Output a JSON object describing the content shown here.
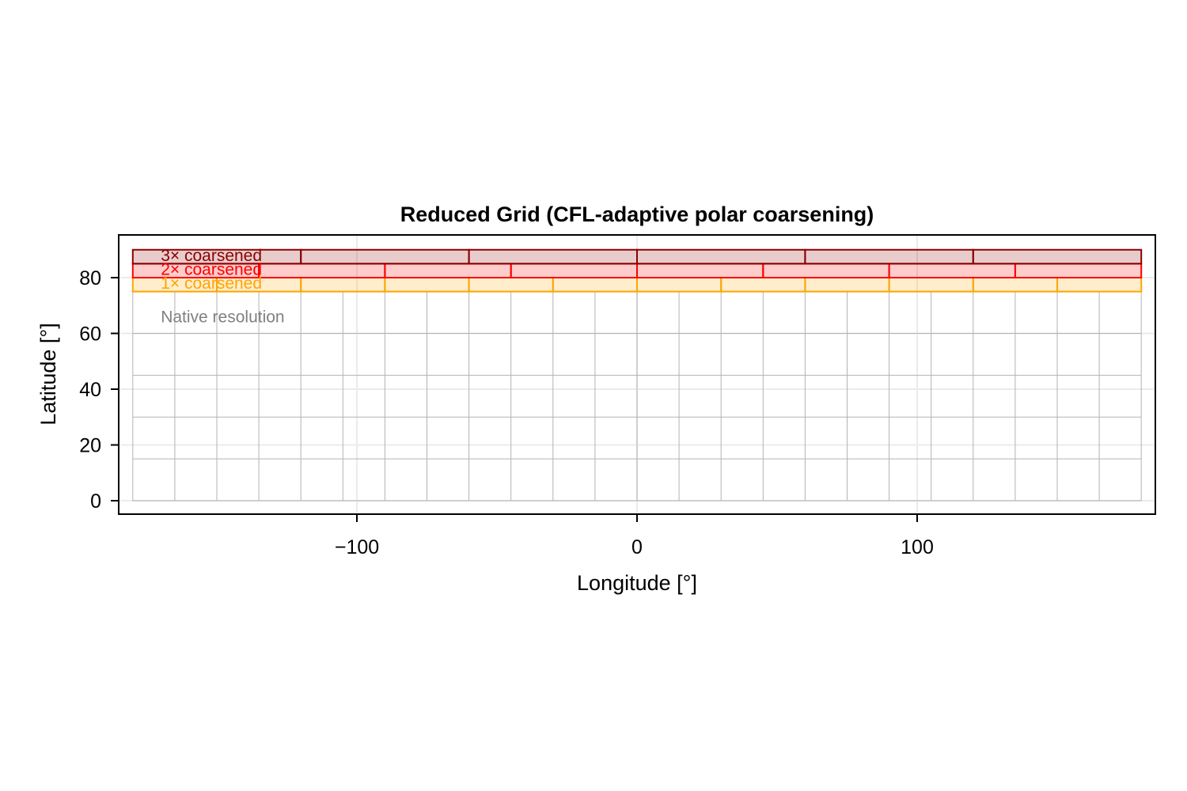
{
  "chart_data": {
    "type": "heatmap",
    "title": "Reduced Grid (CFL-adaptive polar coarsening)",
    "xlabel": "Longitude [°]",
    "ylabel": "Latitude [°]",
    "xlim": [
      -185,
      185
    ],
    "ylim": [
      -5,
      95
    ],
    "xticks": [
      -100,
      0,
      100
    ],
    "xtick_labels": [
      "−100",
      "0",
      "100"
    ],
    "yticks": [
      0,
      20,
      40,
      60,
      80
    ],
    "ytick_labels": [
      "0",
      "20",
      "40",
      "60",
      "80"
    ],
    "grid": true,
    "native_grid": {
      "label": "Native resolution",
      "label_color": "#808080",
      "line_color": "#b3b3b3",
      "lon_range": [
        -180,
        180
      ],
      "lon_step": 15,
      "lat_range": [
        0,
        75
      ],
      "lat_step": 15
    },
    "bands": [
      {
        "label": "1× coarsened",
        "factor": 1,
        "lat_range": [
          75,
          80
        ],
        "lon_step": 30,
        "stroke": "#FFA500",
        "fill": "#FFA500",
        "fill_opacity": 0.2
      },
      {
        "label": "2× coarsened",
        "factor": 2,
        "lat_range": [
          80,
          85
        ],
        "lon_step": 45,
        "stroke": "#FF0000",
        "fill": "#FF0000",
        "fill_opacity": 0.2
      },
      {
        "label": "3× coarsened",
        "factor": 3,
        "lat_range": [
          85,
          90
        ],
        "lon_step": 60,
        "stroke": "#8B0000",
        "fill": "#8B0000",
        "fill_opacity": 0.2
      }
    ],
    "text_annotations": [
      {
        "text": "3× coarsened",
        "lon": -170,
        "lat": 88,
        "color": "#8B0000"
      },
      {
        "text": "2× coarsened",
        "lon": -170,
        "lat": 83,
        "color": "#FF0000"
      },
      {
        "text": "1× coarsened",
        "lon": -170,
        "lat": 78,
        "color": "#FFA500"
      },
      {
        "text": "Native resolution",
        "lon": -170,
        "lat": 66,
        "color": "#808080"
      }
    ]
  }
}
